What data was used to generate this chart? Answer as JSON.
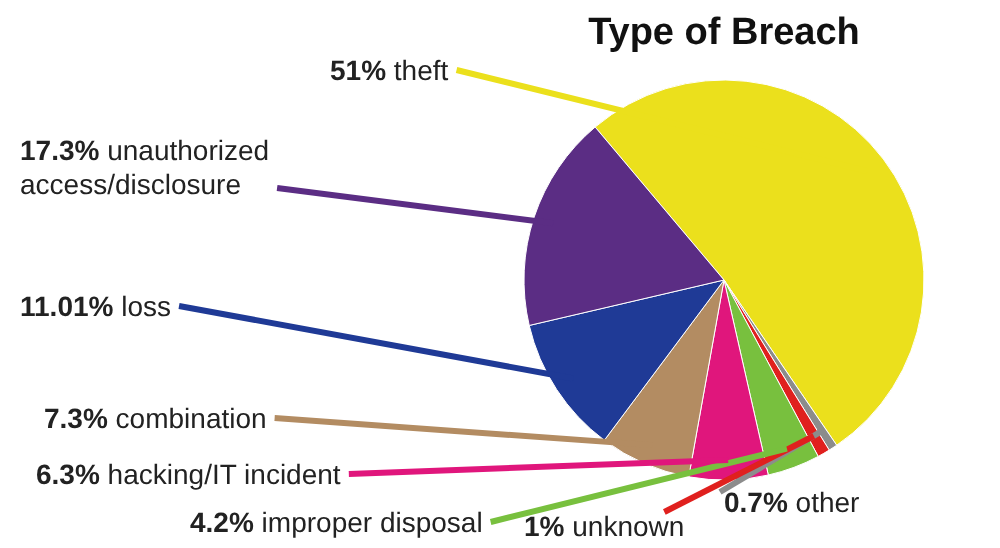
{
  "chart_data": {
    "type": "pie",
    "title": "Type of Breach",
    "categories": [
      "theft",
      "other",
      "unknown",
      "improper disposal",
      "hacking/IT incident",
      "combination",
      "loss",
      "unauthorized access/disclosure"
    ],
    "values": [
      51,
      0.7,
      1,
      4.2,
      6.3,
      7.3,
      11.01,
      17.3
    ],
    "value_labels": [
      "51%",
      "0.7%",
      "1%",
      "4.2%",
      "6.3%",
      "7.3%",
      "11.01%",
      "17.3%"
    ],
    "colors": [
      "#ebe01c",
      "#8c8c8c",
      "#e0201e",
      "#78c03e",
      "#e0167c",
      "#b38c62",
      "#1f3a96",
      "#5b2d84"
    ]
  }
}
